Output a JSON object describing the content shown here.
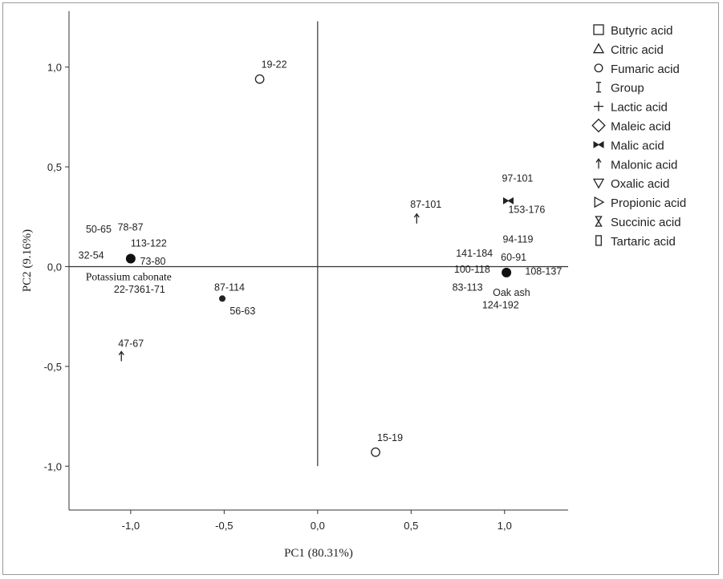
{
  "chart_data": {
    "type": "scatter",
    "title": "",
    "xlabel": "PC1 (80.31%)",
    "ylabel": "PC2 (9.16%)",
    "xlim": [
      -1.33,
      1.34
    ],
    "ylim": [
      -1.22,
      1.28
    ],
    "x_ticks": [
      -1.0,
      -0.5,
      0.0,
      0.5,
      1.0
    ],
    "y_ticks": [
      -1.0,
      -0.5,
      0.0,
      0.5,
      1.0
    ],
    "x_tick_labels": [
      "-1,0",
      "-0,5",
      "0,0",
      "0,5",
      "1,0"
    ],
    "y_tick_labels": [
      "-1,0",
      "-0,5",
      "0,0",
      "0,5",
      "1,0"
    ],
    "reference_lines": {
      "x": 0.0,
      "y": 0.0,
      "x_span": [
        -1.0,
        1.0
      ],
      "y_span": [
        -1.0,
        1.23
      ]
    },
    "legend": {
      "placement": "right",
      "items": [
        {
          "label": "Butyric acid",
          "marker": "square"
        },
        {
          "label": "Citric acid",
          "marker": "triangle"
        },
        {
          "label": "Fumaric acid",
          "marker": "circle"
        },
        {
          "label": "Group",
          "marker": "ibeam"
        },
        {
          "label": "Lactic acid",
          "marker": "plus"
        },
        {
          "label": "Maleic acid",
          "marker": "diamond"
        },
        {
          "label": "Malic acid",
          "marker": "bowtie"
        },
        {
          "label": "Malonic acid",
          "marker": "arrow-up"
        },
        {
          "label": "Oxalic acid",
          "marker": "triangle-down"
        },
        {
          "label": "Propionic acid",
          "marker": "triangle-right"
        },
        {
          "label": "Succinic acid",
          "marker": "hourglass"
        },
        {
          "label": "Tartaric acid",
          "marker": "tall-rect"
        }
      ]
    },
    "points": [
      {
        "label": "19-22",
        "x": -0.31,
        "y": 0.94,
        "marker": "circle"
      },
      {
        "label": "15-19",
        "x": 0.31,
        "y": -0.93,
        "marker": "circle"
      },
      {
        "label": "87-101",
        "x": 0.53,
        "y": 0.24,
        "marker": "arrow-up"
      },
      {
        "label": "97-101",
        "x": 1.02,
        "y": 0.33,
        "marker": "bowtie"
      },
      {
        "label": "47-67",
        "x": -1.05,
        "y": -0.45,
        "marker": "arrow-up"
      },
      {
        "label": "87-114",
        "x": -0.51,
        "y": -0.16,
        "marker": "dot"
      },
      {
        "label": "Potassium cabonate",
        "x": -1.0,
        "y": 0.04,
        "marker": "filled-circle"
      },
      {
        "label": "Oak ash",
        "x": 1.01,
        "y": -0.03,
        "marker": "filled-circle"
      }
    ],
    "annotations": [
      {
        "text": "50-65",
        "x": -1.24,
        "y": 0.17
      },
      {
        "text": "78-87",
        "x": -1.07,
        "y": 0.18
      },
      {
        "text": "113-122",
        "x": -1.0,
        "y": 0.1
      },
      {
        "text": "32-54",
        "x": -1.28,
        "y": 0.04
      },
      {
        "text": "73-80",
        "x": -0.95,
        "y": 0.01
      },
      {
        "text": "22-7361-71",
        "x": -1.09,
        "y": -0.13
      },
      {
        "text": "56-63",
        "x": -0.47,
        "y": -0.24
      },
      {
        "text": "153-176",
        "x": 1.02,
        "y": 0.27
      },
      {
        "text": "94-119",
        "x": 0.99,
        "y": 0.12
      },
      {
        "text": "141-184",
        "x": 0.74,
        "y": 0.05
      },
      {
        "text": "60-91",
        "x": 0.98,
        "y": 0.03
      },
      {
        "text": "100-118",
        "x": 0.73,
        "y": -0.03
      },
      {
        "text": "108-137",
        "x": 1.11,
        "y": -0.04
      },
      {
        "text": "83-113",
        "x": 0.72,
        "y": -0.12
      },
      {
        "text": "124-192",
        "x": 0.88,
        "y": -0.21
      }
    ]
  }
}
